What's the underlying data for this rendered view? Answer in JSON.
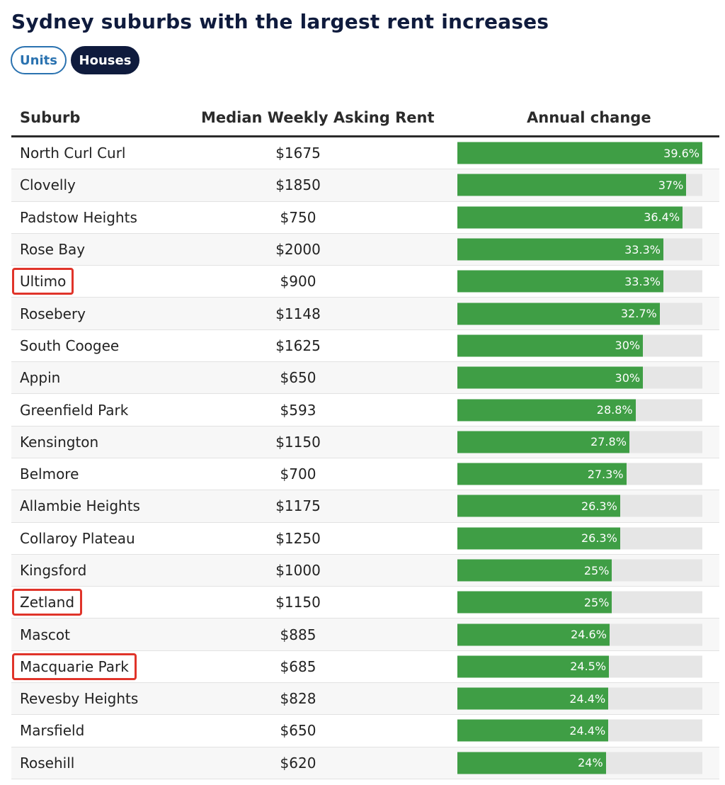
{
  "title": "Sydney suburbs with the largest rent increases",
  "toggle": {
    "units_label": "Units",
    "houses_label": "Houses",
    "selected": "Houses"
  },
  "colors": {
    "bar": "#3f9e45",
    "track": "#e6e6e6",
    "highlight": "#e0342a",
    "navy": "#0f1b3d"
  },
  "chart_data": {
    "type": "table",
    "columns": [
      "Suburb",
      "Median Weekly Asking Rent",
      "Annual change"
    ],
    "max_value": 39.6,
    "rows": [
      {
        "suburb": "North Curl Curl",
        "rent": "$1675",
        "change": 39.6,
        "change_label": "39.6%",
        "highlighted": false
      },
      {
        "suburb": "Clovelly",
        "rent": "$1850",
        "change": 37,
        "change_label": "37%",
        "highlighted": false
      },
      {
        "suburb": "Padstow Heights",
        "rent": "$750",
        "change": 36.4,
        "change_label": "36.4%",
        "highlighted": false
      },
      {
        "suburb": "Rose Bay",
        "rent": "$2000",
        "change": 33.3,
        "change_label": "33.3%",
        "highlighted": false
      },
      {
        "suburb": "Ultimo",
        "rent": "$900",
        "change": 33.3,
        "change_label": "33.3%",
        "highlighted": true
      },
      {
        "suburb": "Rosebery",
        "rent": "$1148",
        "change": 32.7,
        "change_label": "32.7%",
        "highlighted": false
      },
      {
        "suburb": "South Coogee",
        "rent": "$1625",
        "change": 30,
        "change_label": "30%",
        "highlighted": false
      },
      {
        "suburb": "Appin",
        "rent": "$650",
        "change": 30,
        "change_label": "30%",
        "highlighted": false
      },
      {
        "suburb": "Greenfield Park",
        "rent": "$593",
        "change": 28.8,
        "change_label": "28.8%",
        "highlighted": false
      },
      {
        "suburb": "Kensington",
        "rent": "$1150",
        "change": 27.8,
        "change_label": "27.8%",
        "highlighted": false
      },
      {
        "suburb": "Belmore",
        "rent": "$700",
        "change": 27.3,
        "change_label": "27.3%",
        "highlighted": false
      },
      {
        "suburb": "Allambie Heights",
        "rent": "$1175",
        "change": 26.3,
        "change_label": "26.3%",
        "highlighted": false
      },
      {
        "suburb": "Collaroy Plateau",
        "rent": "$1250",
        "change": 26.3,
        "change_label": "26.3%",
        "highlighted": false
      },
      {
        "suburb": "Kingsford",
        "rent": "$1000",
        "change": 25,
        "change_label": "25%",
        "highlighted": false
      },
      {
        "suburb": "Zetland",
        "rent": "$1150",
        "change": 25,
        "change_label": "25%",
        "highlighted": true
      },
      {
        "suburb": "Mascot",
        "rent": "$885",
        "change": 24.6,
        "change_label": "24.6%",
        "highlighted": false
      },
      {
        "suburb": "Macquarie Park",
        "rent": "$685",
        "change": 24.5,
        "change_label": "24.5%",
        "highlighted": true
      },
      {
        "suburb": "Revesby Heights",
        "rent": "$828",
        "change": 24.4,
        "change_label": "24.4%",
        "highlighted": false
      },
      {
        "suburb": "Marsfield",
        "rent": "$650",
        "change": 24.4,
        "change_label": "24.4%",
        "highlighted": false
      },
      {
        "suburb": "Rosehill",
        "rent": "$620",
        "change": 24,
        "change_label": "24%",
        "highlighted": false
      }
    ]
  }
}
